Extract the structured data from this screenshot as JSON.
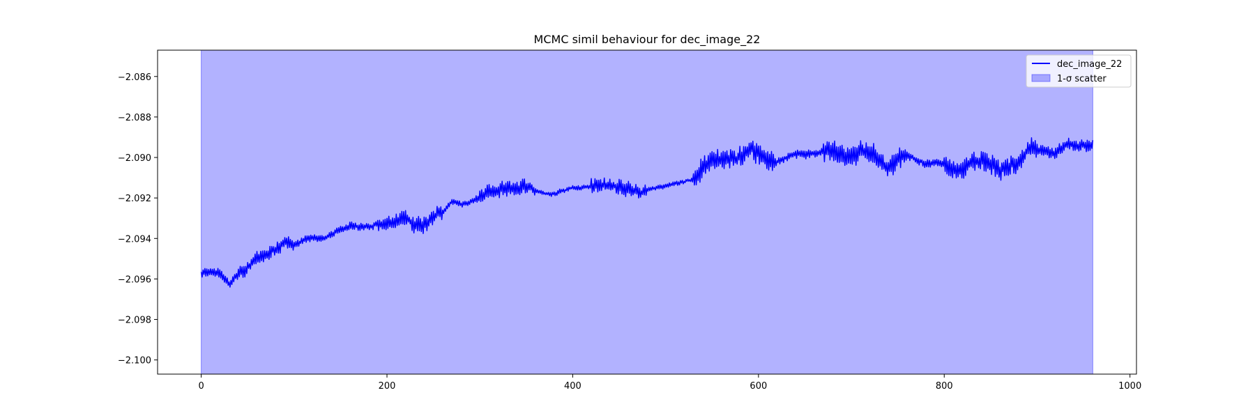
{
  "chart_data": {
    "type": "line",
    "title": "MCMC simil behaviour for dec_image_22",
    "xlabel": "",
    "ylabel": "",
    "xlim": [
      -47,
      1007
    ],
    "ylim": [
      -2.1007,
      -2.0847
    ],
    "x_ticks": [
      0,
      200,
      400,
      600,
      800,
      1000
    ],
    "x_tick_labels": [
      "0",
      "200",
      "400",
      "600",
      "800",
      "1000"
    ],
    "y_ticks": [
      -2.086,
      -2.088,
      -2.09,
      -2.092,
      -2.094,
      -2.096,
      -2.098,
      -2.1
    ],
    "y_tick_labels": [
      "−2.086",
      "−2.088",
      "−2.090",
      "−2.092",
      "−2.094",
      "−2.096",
      "−2.098",
      "−2.100"
    ],
    "grid": false,
    "legend_position": "top-right",
    "series": [
      {
        "name": "dec_image_22",
        "color": "#0000ff",
        "keypoints": [
          [
            0,
            -2.0958
          ],
          [
            10,
            -2.0956
          ],
          [
            20,
            -2.0957
          ],
          [
            30,
            -2.0962
          ],
          [
            40,
            -2.0958
          ],
          [
            50,
            -2.0955
          ],
          [
            60,
            -2.095
          ],
          [
            70,
            -2.0948
          ],
          [
            80,
            -2.0945
          ],
          [
            90,
            -2.0942
          ],
          [
            100,
            -2.0943
          ],
          [
            110,
            -2.0941
          ],
          [
            120,
            -2.094
          ],
          [
            130,
            -2.094
          ],
          [
            140,
            -2.0938
          ],
          [
            150,
            -2.0936
          ],
          [
            160,
            -2.0934
          ],
          [
            170,
            -2.0934
          ],
          [
            180,
            -2.0934
          ],
          [
            190,
            -2.0933
          ],
          [
            200,
            -2.0933
          ],
          [
            210,
            -2.0932
          ],
          [
            220,
            -2.093
          ],
          [
            230,
            -2.0933
          ],
          [
            240,
            -2.0933
          ],
          [
            250,
            -2.0928
          ],
          [
            260,
            -2.0927
          ],
          [
            270,
            -2.0922
          ],
          [
            280,
            -2.0923
          ],
          [
            290,
            -2.0922
          ],
          [
            300,
            -2.092
          ],
          [
            310,
            -2.0917
          ],
          [
            320,
            -2.0916
          ],
          [
            330,
            -2.0915
          ],
          [
            340,
            -2.0915
          ],
          [
            350,
            -2.0914
          ],
          [
            360,
            -2.0916
          ],
          [
            370,
            -2.0918
          ],
          [
            380,
            -2.0918
          ],
          [
            390,
            -2.0916
          ],
          [
            400,
            -2.0915
          ],
          [
            410,
            -2.0915
          ],
          [
            420,
            -2.0914
          ],
          [
            430,
            -2.0914
          ],
          [
            440,
            -2.0913
          ],
          [
            450,
            -2.0915
          ],
          [
            460,
            -2.0915
          ],
          [
            470,
            -2.0918
          ],
          [
            480,
            -2.0916
          ],
          [
            490,
            -2.0915
          ],
          [
            500,
            -2.0914
          ],
          [
            510,
            -2.0913
          ],
          [
            520,
            -2.0912
          ],
          [
            530,
            -2.0911
          ],
          [
            540,
            -2.0905
          ],
          [
            550,
            -2.09
          ],
          [
            560,
            -2.0902
          ],
          [
            570,
            -2.09
          ],
          [
            580,
            -2.09
          ],
          [
            590,
            -2.0896
          ],
          [
            600,
            -2.0897
          ],
          [
            610,
            -2.0902
          ],
          [
            620,
            -2.0902
          ],
          [
            630,
            -2.09
          ],
          [
            640,
            -2.0898
          ],
          [
            650,
            -2.0899
          ],
          [
            660,
            -2.0898
          ],
          [
            670,
            -2.0897
          ],
          [
            680,
            -2.0895
          ],
          [
            690,
            -2.0899
          ],
          [
            700,
            -2.09
          ],
          [
            710,
            -2.0897
          ],
          [
            720,
            -2.0897
          ],
          [
            730,
            -2.0902
          ],
          [
            740,
            -2.0905
          ],
          [
            750,
            -2.09
          ],
          [
            760,
            -2.0899
          ],
          [
            770,
            -2.0901
          ],
          [
            780,
            -2.0903
          ],
          [
            790,
            -2.0902
          ],
          [
            800,
            -2.0904
          ],
          [
            810,
            -2.0907
          ],
          [
            820,
            -2.0905
          ],
          [
            830,
            -2.0902
          ],
          [
            840,
            -2.0902
          ],
          [
            850,
            -2.0903
          ],
          [
            860,
            -2.0906
          ],
          [
            870,
            -2.0905
          ],
          [
            880,
            -2.0903
          ],
          [
            890,
            -2.0896
          ],
          [
            900,
            -2.0896
          ],
          [
            910,
            -2.0897
          ],
          [
            920,
            -2.0898
          ],
          [
            930,
            -2.0894
          ],
          [
            940,
            -2.0894
          ],
          [
            950,
            -2.0894
          ],
          [
            960,
            -2.0894
          ]
        ]
      }
    ],
    "fill_between": {
      "name": "1-σ scatter",
      "color": "#0000ff",
      "alpha": 0.3,
      "x_range": [
        0,
        960
      ]
    }
  },
  "legend": {
    "line_label": "dec_image_22",
    "fill_label": "1-σ scatter"
  }
}
